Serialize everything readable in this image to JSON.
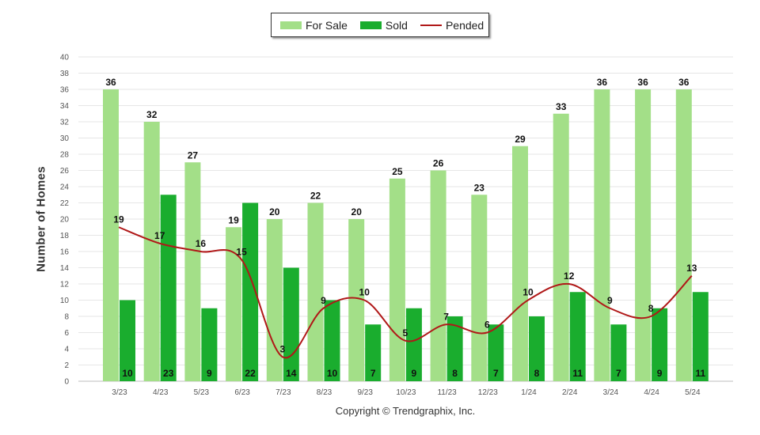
{
  "legend": {
    "for_sale": "For Sale",
    "sold": "Sold",
    "pended": "Pended"
  },
  "copyright": "Copyright © Trendgraphix, Inc.",
  "colors": {
    "for_sale": "#a3df88",
    "sold": "#1aad2e",
    "pended": "#b01818",
    "grid": "#e6e6e6",
    "axis_text": "#555555"
  },
  "chart_data": {
    "type": "bar",
    "title": "",
    "xlabel": "",
    "ylabel": "Number of Homes",
    "ylim": [
      0,
      40
    ],
    "yticks": [
      0,
      2,
      4,
      6,
      8,
      10,
      12,
      14,
      16,
      18,
      20,
      22,
      24,
      26,
      28,
      30,
      32,
      34,
      36,
      38,
      40
    ],
    "grid": true,
    "legend_position": "top-center",
    "categories": [
      "3/23",
      "4/23",
      "5/23",
      "6/23",
      "7/23",
      "8/23",
      "9/23",
      "10/23",
      "11/23",
      "12/23",
      "1/24",
      "2/24",
      "3/24",
      "4/24",
      "5/24"
    ],
    "series": [
      {
        "name": "For Sale",
        "kind": "bar",
        "values": [
          36,
          32,
          27,
          19,
          20,
          22,
          20,
          25,
          26,
          23,
          29,
          33,
          36,
          36,
          36
        ]
      },
      {
        "name": "Sold",
        "kind": "bar",
        "values": [
          10,
          23,
          9,
          22,
          14,
          10,
          7,
          9,
          8,
          7,
          8,
          11,
          7,
          9,
          11
        ]
      },
      {
        "name": "Pended",
        "kind": "line",
        "smooth": true,
        "values": [
          19,
          17,
          16,
          15,
          3,
          9,
          10,
          5,
          7,
          6,
          10,
          12,
          9,
          8,
          13
        ]
      }
    ]
  }
}
